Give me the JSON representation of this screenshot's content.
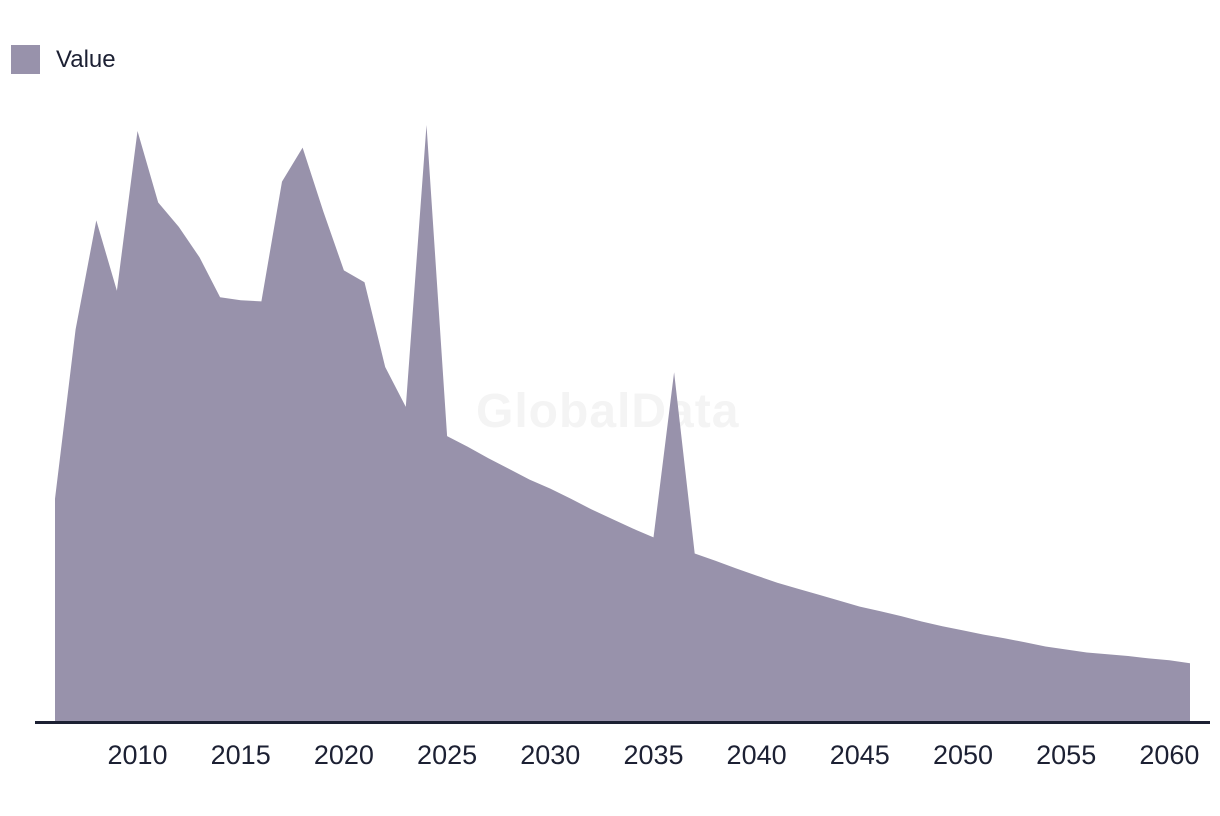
{
  "page": {
    "background": "#ffffff"
  },
  "legend": {
    "items": [
      {
        "label": "Value",
        "color": "#9892AB"
      }
    ]
  },
  "watermark": {
    "text": "GlobalData",
    "color": "#f4f4f4"
  },
  "axis": {
    "line_color": "#1c2033",
    "label_color": "#1c2033"
  },
  "chart_data": {
    "type": "area",
    "title": "",
    "xlabel": "",
    "ylabel": "",
    "x_range": [
      2006,
      2061
    ],
    "ylim": [
      0,
      100
    ],
    "grid": false,
    "y_axis_visible": false,
    "legend_position": "top-left",
    "x_tick_labels": [
      "2010",
      "2015",
      "2020",
      "2025",
      "2030",
      "2035",
      "2040",
      "2045",
      "2050",
      "2055",
      "2060"
    ],
    "x": [
      2006,
      2007,
      2008,
      2009,
      2010,
      2011,
      2012,
      2013,
      2014,
      2015,
      2016,
      2017,
      2018,
      2019,
      2020,
      2021,
      2022,
      2023,
      2024,
      2025,
      2026,
      2027,
      2028,
      2029,
      2030,
      2031,
      2032,
      2033,
      2034,
      2035,
      2036,
      2037,
      2038,
      2039,
      2040,
      2041,
      2042,
      2043,
      2044,
      2045,
      2046,
      2047,
      2048,
      2049,
      2050,
      2051,
      2052,
      2053,
      2054,
      2055,
      2056,
      2057,
      2058,
      2059,
      2060,
      2061
    ],
    "series": [
      {
        "name": "Value",
        "color": "#9892AB",
        "values": [
          37.3,
          65.7,
          84.0,
          72.2,
          99.0,
          87.0,
          82.9,
          77.8,
          71.1,
          70.6,
          70.4,
          90.5,
          96.2,
          85.5,
          75.6,
          73.6,
          59.4,
          52.7,
          100.0,
          47.8,
          46.0,
          44.1,
          42.3,
          40.5,
          39.0,
          37.3,
          35.5,
          33.9,
          32.3,
          30.8,
          58.5,
          28.1,
          26.9,
          25.6,
          24.4,
          23.2,
          22.2,
          21.2,
          20.2,
          19.2,
          18.4,
          17.6,
          16.7,
          15.9,
          15.2,
          14.5,
          13.9,
          13.2,
          12.5,
          12.0,
          11.5,
          11.2,
          10.9,
          10.5,
          10.2,
          9.7
        ]
      }
    ]
  }
}
